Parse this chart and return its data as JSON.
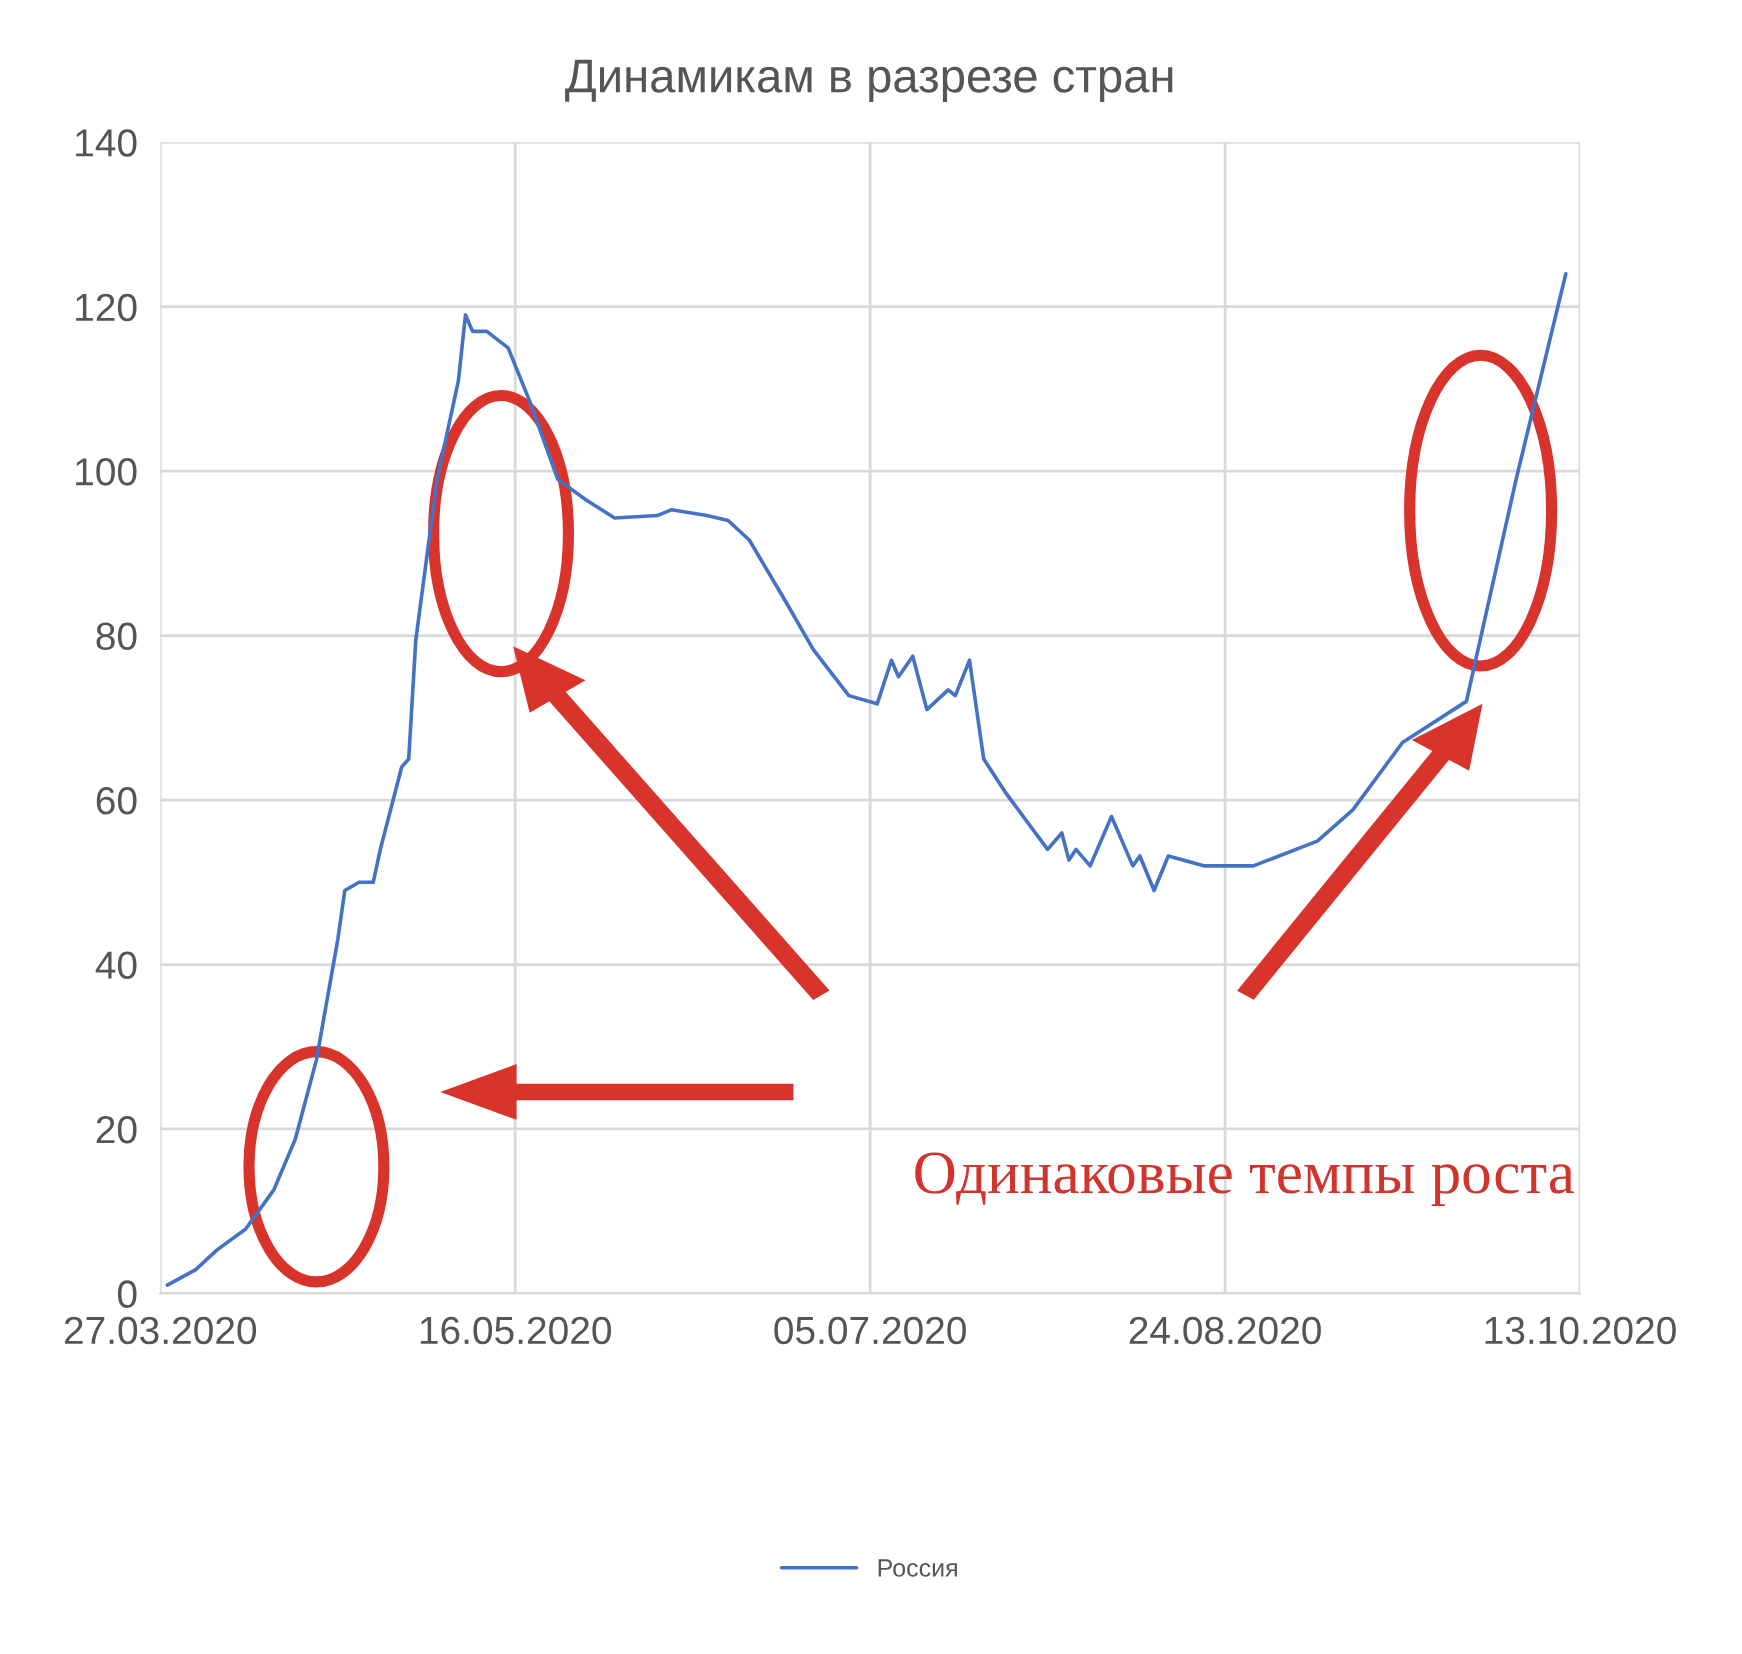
{
  "chart_data": {
    "type": "line",
    "title": "Динамикам в разрезе стран",
    "x": [
      "2020-03-28",
      "2020-04-01",
      "2020-04-04",
      "2020-04-08",
      "2020-04-12",
      "2020-04-15",
      "2020-04-18",
      "2020-04-21",
      "2020-04-22",
      "2020-04-24",
      "2020-04-26",
      "2020-04-27",
      "2020-04-30",
      "2020-05-01",
      "2020-05-02",
      "2020-05-05",
      "2020-05-08",
      "2020-05-09",
      "2020-05-10",
      "2020-05-12",
      "2020-05-15",
      "2020-05-18",
      "2020-05-22",
      "2020-05-26",
      "2020-05-30",
      "2020-06-05",
      "2020-06-07",
      "2020-06-12",
      "2020-06-15",
      "2020-06-18",
      "2020-06-23",
      "2020-06-27",
      "2020-07-02",
      "2020-07-06",
      "2020-07-08",
      "2020-07-09",
      "2020-07-11",
      "2020-07-13",
      "2020-07-16",
      "2020-07-17",
      "2020-07-19",
      "2020-07-21",
      "2020-07-24",
      "2020-07-30",
      "2020-08-01",
      "2020-08-02",
      "2020-08-03",
      "2020-08-05",
      "2020-08-08",
      "2020-08-11",
      "2020-08-12",
      "2020-08-14",
      "2020-08-16",
      "2020-08-21",
      "2020-08-28",
      "2020-09-06",
      "2020-09-11",
      "2020-09-18",
      "2020-09-27",
      "2020-10-04",
      "2020-10-11"
    ],
    "series": [
      {
        "name": "Россия",
        "color": "#4472c4",
        "values": [
          1,
          2.9,
          5.3,
          7.8,
          12.6,
          18.7,
          28.4,
          43,
          49,
          50,
          50,
          54,
          64,
          65,
          79.5,
          99,
          111,
          119,
          117,
          117,
          115,
          108.6,
          99,
          96.5,
          94.3,
          94.6,
          95.3,
          94.6,
          94,
          91.6,
          84.3,
          78.3,
          72.7,
          71.7,
          77,
          75,
          77.5,
          71,
          73.4,
          72.7,
          77,
          65,
          61,
          54,
          56,
          52.7,
          54,
          52,
          58,
          52,
          53.2,
          49,
          53.2,
          52,
          52,
          55,
          58.8,
          67,
          72,
          99,
          124
        ]
      }
    ],
    "xlim": [
      "2020-03-27",
      "2020-10-13"
    ],
    "xticks": [
      {
        "value": "2020-03-27",
        "label": "27.03.2020"
      },
      {
        "value": "2020-05-16",
        "label": "16.05.2020"
      },
      {
        "value": "2020-07-05",
        "label": "05.07.2020"
      },
      {
        "value": "2020-08-24",
        "label": "24.08.2020"
      },
      {
        "value": "2020-10-13",
        "label": "13.10.2020"
      }
    ],
    "ylim": [
      0,
      140
    ],
    "yticks": [
      0,
      20,
      40,
      60,
      80,
      100,
      120,
      140
    ],
    "grid": true,
    "legend": "bottom",
    "marker": "none",
    "line_style": "solid",
    "annotations": [
      "Одинаковые темпы роста"
    ]
  }
}
